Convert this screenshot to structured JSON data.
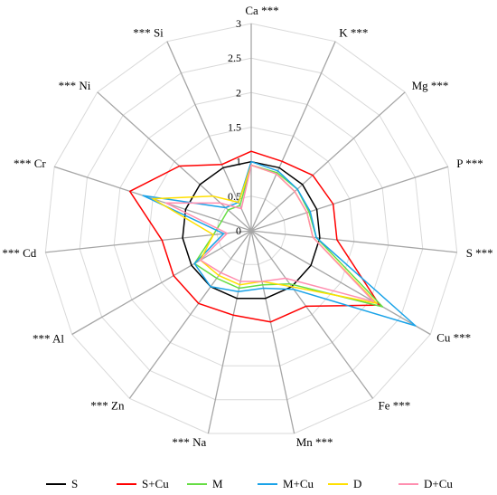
{
  "chart_data": {
    "type": "radar",
    "title": "",
    "rmin": 0,
    "rmax": 3,
    "ticks": [
      "0",
      "0.5",
      "1",
      "1.5",
      "2",
      "2.5",
      "3"
    ],
    "tick_values": [
      0,
      0.5,
      1,
      1.5,
      2,
      2.5,
      3
    ],
    "grid": true,
    "legend_position": "bottom",
    "categories": [
      "Ca",
      "K",
      "Mg",
      "P",
      "S",
      "Cu",
      "Fe",
      "Mn",
      "Na",
      "Zn",
      "Al",
      "Cd",
      "Cr",
      "Ni",
      "Si"
    ],
    "significance": [
      "***",
      "***",
      "***",
      "***",
      "***",
      "***",
      "***",
      "***",
      "***",
      "***",
      "***",
      "***",
      "***",
      "***",
      "***"
    ],
    "series": [
      {
        "name": "S",
        "color": "#000000",
        "values": [
          1.0,
          1.0,
          1.0,
          1.0,
          1.0,
          1.0,
          1.0,
          1.0,
          1.0,
          1.0,
          1.0,
          1.0,
          1.0,
          1.0,
          1.0
        ]
      },
      {
        "name": "S+Cu",
        "color": "#ff0000",
        "values": [
          1.15,
          1.1,
          1.2,
          1.25,
          1.25,
          2.15,
          1.35,
          1.35,
          1.25,
          1.3,
          1.3,
          1.3,
          1.85,
          1.4,
          1.05
        ]
      },
      {
        "name": "M",
        "color": "#66dd44",
        "values": [
          0.95,
          0.92,
          0.9,
          0.88,
          0.95,
          2.2,
          0.95,
          0.8,
          0.85,
          0.85,
          0.95,
          0.55,
          0.45,
          0.45,
          0.4
        ]
      },
      {
        "name": "M+Cu",
        "color": "#1aa3e8",
        "values": [
          1.0,
          0.95,
          0.9,
          0.9,
          0.95,
          2.75,
          1.05,
          0.85,
          0.9,
          1.0,
          0.95,
          0.4,
          1.65,
          0.5,
          0.45
        ]
      },
      {
        "name": "D",
        "color": "#ffe000",
        "values": [
          0.95,
          0.9,
          0.85,
          0.85,
          0.9,
          2.1,
          1.0,
          0.75,
          0.8,
          0.8,
          0.85,
          0.55,
          1.5,
          0.75,
          0.45
        ]
      },
      {
        "name": "D+Cu",
        "color": "#ff8fb0",
        "values": [
          0.95,
          0.9,
          0.85,
          0.85,
          0.9,
          2.05,
          0.85,
          0.75,
          0.75,
          0.75,
          0.85,
          0.35,
          1.3,
          0.6,
          0.35
        ]
      }
    ]
  }
}
